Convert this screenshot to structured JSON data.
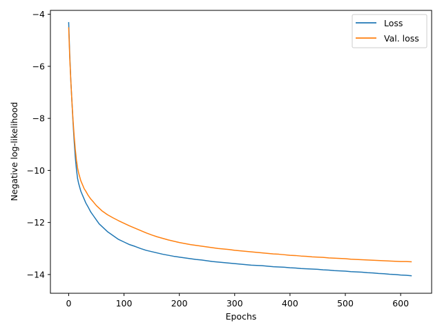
{
  "chart_data": {
    "type": "line",
    "title": "",
    "xlabel": "Epochs",
    "ylabel": "Negative log-likelihood",
    "xlim": [
      -33,
      656
    ],
    "ylim": [
      -14.72,
      -3.85
    ],
    "xticks": [
      0,
      100,
      200,
      300,
      400,
      500,
      600
    ],
    "xtick_labels": [
      "0",
      "100",
      "200",
      "300",
      "400",
      "500",
      "600"
    ],
    "yticks": [
      -4,
      -6,
      -8,
      -10,
      -12,
      -14
    ],
    "ytick_labels": [
      "−4",
      "−6",
      "−8",
      "−10",
      "−12",
      "−14"
    ],
    "grid": false,
    "legend_position": "top-right",
    "series": [
      {
        "name": "Loss",
        "color": "#1f77b4",
        "x": [
          0,
          2,
          4,
          6,
          8,
          10,
          12,
          14,
          16,
          18,
          20,
          22,
          25,
          28,
          31,
          35,
          40,
          45,
          50,
          55,
          60,
          70,
          80,
          90,
          100,
          110,
          120,
          130,
          140,
          150,
          160,
          170,
          180,
          190,
          200,
          210,
          220,
          230,
          240,
          250,
          260,
          270,
          280,
          290,
          300,
          310,
          320,
          330,
          340,
          350,
          360,
          370,
          380,
          390,
          400,
          410,
          420,
          430,
          440,
          450,
          460,
          470,
          480,
          490,
          500,
          510,
          520,
          530,
          540,
          550,
          560,
          570,
          580,
          590,
          600,
          610,
          620
        ],
        "y": [
          -4.3,
          -5.6,
          -6.6,
          -7.4,
          -8.2,
          -8.9,
          -9.5,
          -9.95,
          -10.3,
          -10.5,
          -10.65,
          -10.8,
          -10.95,
          -11.1,
          -11.25,
          -11.4,
          -11.6,
          -11.75,
          -11.9,
          -12.05,
          -12.15,
          -12.35,
          -12.5,
          -12.65,
          -12.75,
          -12.85,
          -12.92,
          -13.0,
          -13.07,
          -13.12,
          -13.17,
          -13.22,
          -13.26,
          -13.3,
          -13.33,
          -13.36,
          -13.39,
          -13.42,
          -13.44,
          -13.47,
          -13.5,
          -13.52,
          -13.54,
          -13.56,
          -13.58,
          -13.6,
          -13.62,
          -13.64,
          -13.65,
          -13.66,
          -13.68,
          -13.7,
          -13.71,
          -13.72,
          -13.74,
          -13.75,
          -13.77,
          -13.78,
          -13.79,
          -13.8,
          -13.82,
          -13.83,
          -13.85,
          -13.86,
          -13.87,
          -13.89,
          -13.9,
          -13.91,
          -13.93,
          -13.94,
          -13.96,
          -13.97,
          -13.99,
          -14.0,
          -14.02,
          -14.03,
          -14.05
        ]
      },
      {
        "name": "Val. loss",
        "color": "#ff7f0e",
        "x": [
          0,
          2,
          4,
          6,
          8,
          10,
          12,
          14,
          16,
          18,
          20,
          22,
          25,
          28,
          31,
          35,
          40,
          45,
          50,
          55,
          60,
          70,
          80,
          90,
          100,
          110,
          120,
          130,
          140,
          150,
          160,
          170,
          180,
          190,
          200,
          210,
          220,
          230,
          240,
          250,
          260,
          270,
          280,
          290,
          300,
          310,
          320,
          330,
          340,
          350,
          360,
          370,
          380,
          390,
          400,
          410,
          420,
          430,
          440,
          450,
          460,
          470,
          480,
          490,
          500,
          510,
          520,
          530,
          540,
          550,
          560,
          570,
          580,
          590,
          600,
          610,
          620
        ],
        "y": [
          -4.5,
          -5.7,
          -6.6,
          -7.4,
          -8.1,
          -8.7,
          -9.2,
          -9.6,
          -9.9,
          -10.1,
          -10.25,
          -10.4,
          -10.55,
          -10.7,
          -10.8,
          -10.95,
          -11.1,
          -11.22,
          -11.35,
          -11.45,
          -11.55,
          -11.7,
          -11.82,
          -11.93,
          -12.03,
          -12.13,
          -12.22,
          -12.31,
          -12.4,
          -12.48,
          -12.55,
          -12.61,
          -12.67,
          -12.72,
          -12.77,
          -12.81,
          -12.85,
          -12.88,
          -12.91,
          -12.94,
          -12.97,
          -13.0,
          -13.02,
          -13.04,
          -13.07,
          -13.09,
          -13.11,
          -13.13,
          -13.15,
          -13.17,
          -13.19,
          -13.21,
          -13.22,
          -13.24,
          -13.26,
          -13.27,
          -13.29,
          -13.3,
          -13.32,
          -13.33,
          -13.34,
          -13.36,
          -13.37,
          -13.38,
          -13.39,
          -13.41,
          -13.42,
          -13.43,
          -13.44,
          -13.45,
          -13.46,
          -13.47,
          -13.48,
          -13.49,
          -13.5,
          -13.5,
          -13.51
        ]
      }
    ]
  }
}
